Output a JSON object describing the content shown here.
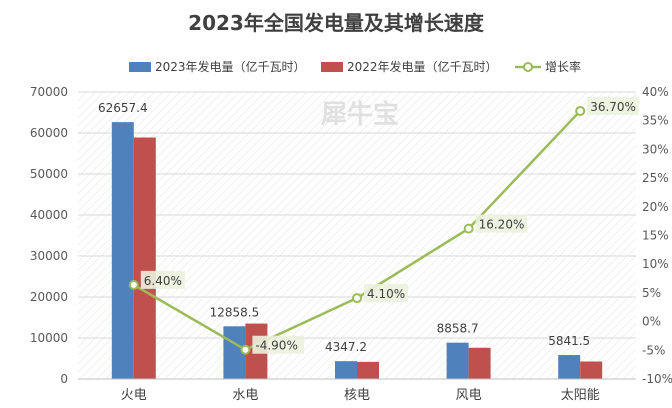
{
  "chart_data": {
    "type": "bar",
    "title": "2023年全国发电量及其增长速度",
    "categories": [
      "火电",
      "水电",
      "核电",
      "风电",
      "太阳能"
    ],
    "series": [
      {
        "name": "2023年发电量（亿千瓦时）",
        "type": "bar",
        "axis": "left",
        "color": "#4f81bd",
        "values": [
          62657.4,
          12858.5,
          4347.2,
          8858.7,
          5841.5
        ],
        "labels": [
          "62657.4",
          "12858.5",
          "4347.2",
          "8858.7",
          "5841.5"
        ]
      },
      {
        "name": "2022年发电量（亿千瓦时）",
        "type": "bar",
        "axis": "left",
        "color": "#c0504d",
        "values": [
          58900,
          13520,
          4180,
          7620,
          4270
        ]
      },
      {
        "name": "增长率",
        "type": "line",
        "axis": "right",
        "color": "#9bbb59",
        "values": [
          6.4,
          -4.9,
          4.1,
          16.2,
          36.7
        ],
        "labels": [
          "6.40%",
          "-4.90%",
          "4.10%",
          "16.20%",
          "36.70%"
        ]
      }
    ],
    "y_left": {
      "ylim": [
        0,
        70000
      ],
      "ticks": [
        "0",
        "10000",
        "20000",
        "30000",
        "40000",
        "50000",
        "60000",
        "70000"
      ]
    },
    "y_right": {
      "ylim": [
        -10,
        40
      ],
      "ticks": [
        "-10%",
        "-5%",
        "0%",
        "5%",
        "10%",
        "15%",
        "20%",
        "25%",
        "30%",
        "35%",
        "40%"
      ]
    },
    "legend_position": "top-center",
    "grid": true,
    "background": "diagonal-hatch"
  },
  "watermark": "犀牛宝"
}
